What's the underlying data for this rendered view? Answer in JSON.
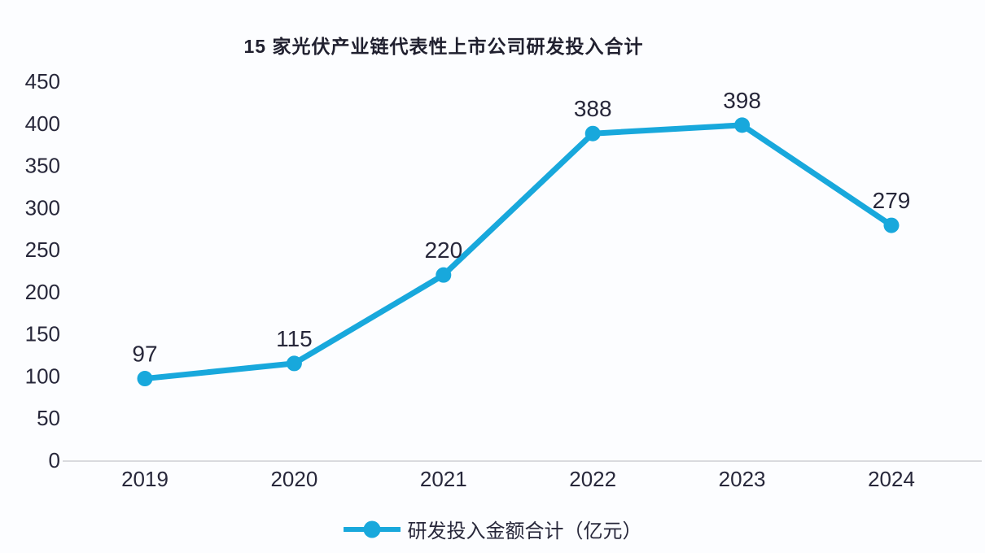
{
  "chart_data": {
    "type": "line",
    "title": "15 家光伏产业链代表性上市公司研发投入合计",
    "categories": [
      "2019",
      "2020",
      "2021",
      "2022",
      "2023",
      "2024"
    ],
    "series": [
      {
        "name": "研发投入金额合计（亿元）",
        "values": [
          97,
          115,
          220,
          388,
          398,
          279
        ]
      }
    ],
    "xlabel": "",
    "ylabel": "",
    "ylim": [
      0,
      450
    ],
    "yticks": [
      0,
      50,
      100,
      150,
      200,
      250,
      300,
      350,
      400,
      450
    ],
    "grid": false,
    "data_labels": true,
    "legend_position": "bottom",
    "line_color": "#18a8dc",
    "marker": "circle",
    "axis_line_color": "#d9dade",
    "text_color": "#27273a",
    "background_color": "#fcfdff"
  }
}
